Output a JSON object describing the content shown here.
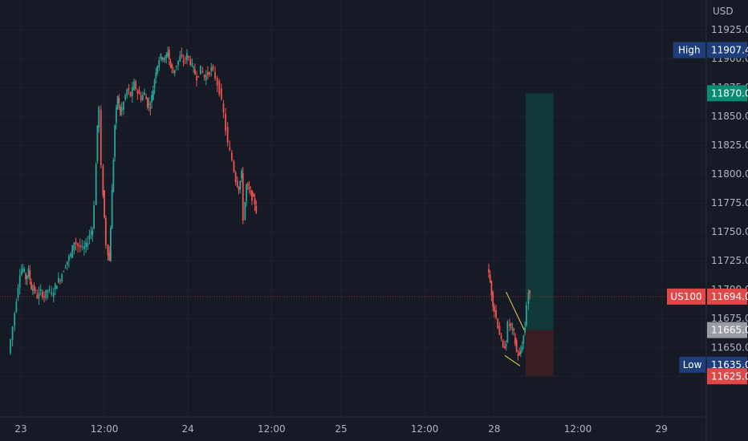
{
  "chart_data": {
    "type": "candlestick",
    "currency": "USD",
    "y_ticks": [
      "11925.0",
      "11900.0",
      "11875.0",
      "11850.0",
      "11825.0",
      "11800.0",
      "11775.0",
      "11750.0",
      "11725.0",
      "11700.0",
      "11675.0",
      "11650.0",
      "11625.0"
    ],
    "ylim": [
      11612,
      11932
    ],
    "x_ticks": [
      {
        "label": "23",
        "t": 0
      },
      {
        "label": "12:00",
        "t": 12
      },
      {
        "label": "24",
        "t": 24
      },
      {
        "label": "12:00",
        "t": 36
      },
      {
        "label": "25",
        "t": 46
      },
      {
        "label": "12:00",
        "t": 58
      },
      {
        "label": "28",
        "t": 68
      },
      {
        "label": "12:00",
        "t": 80
      },
      {
        "label": "29",
        "t": 92
      }
    ],
    "price_tags": [
      {
        "name": "High",
        "value": "11907.4",
        "price": 11907.4,
        "color": "#1d3e7a"
      },
      {
        "name": "",
        "value": "11870.0",
        "price": 11870.0,
        "color": "#0b8c72"
      },
      {
        "name": "US100",
        "value": "11694.0",
        "price": 11694.0,
        "color": "#e04848"
      },
      {
        "name": "",
        "value": "11665.0",
        "price": 11665.0,
        "color": "#9a9ca3"
      },
      {
        "name": "Low",
        "value": "11635.0",
        "price": 11635.0,
        "color": "#1d3e7a"
      },
      {
        "name": "",
        "value": "11625.0",
        "price": 11625.0,
        "color": "#e04848"
      }
    ],
    "current_price": 11694.0,
    "position": {
      "entry": 11665.0,
      "target": 11870.0,
      "stop": 11625.0,
      "t_start": 72.5,
      "t_end": 76.5
    },
    "wedge": {
      "upper": [
        [
          69.7,
          11698
        ],
        [
          72.3,
          11665
        ]
      ],
      "lower": [
        [
          69.5,
          11643
        ],
        [
          71.7,
          11634
        ]
      ]
    },
    "price_path": [
      [
        -1.5,
        11645
      ],
      [
        -0.9,
        11668
      ],
      [
        -0.4,
        11692
      ],
      [
        0.1,
        11715
      ],
      [
        0.5,
        11718
      ],
      [
        0.9,
        11710
      ],
      [
        1.3,
        11716
      ],
      [
        1.7,
        11702
      ],
      [
        2.1,
        11700
      ],
      [
        2.6,
        11694
      ],
      [
        3.1,
        11698
      ],
      [
        3.6,
        11694
      ],
      [
        4.1,
        11700
      ],
      [
        4.7,
        11696
      ],
      [
        5.4,
        11706
      ],
      [
        5.9,
        11710
      ],
      [
        6.4,
        11718
      ],
      [
        6.9,
        11725
      ],
      [
        7.4,
        11730
      ],
      [
        7.9,
        11742
      ],
      [
        8.5,
        11738
      ],
      [
        9.1,
        11735
      ],
      [
        9.6,
        11738
      ],
      [
        10.1,
        11748
      ],
      [
        10.5,
        11752
      ],
      [
        10.8,
        11775
      ],
      [
        11.2,
        11842
      ],
      [
        11.5,
        11857
      ],
      [
        11.8,
        11805
      ],
      [
        12.2,
        11762
      ],
      [
        12.5,
        11740
      ],
      [
        12.9,
        11725
      ],
      [
        13.3,
        11785
      ],
      [
        13.7,
        11842
      ],
      [
        14.1,
        11868
      ],
      [
        14.5,
        11852
      ],
      [
        15.0,
        11862
      ],
      [
        15.5,
        11873
      ],
      [
        16.0,
        11868
      ],
      [
        16.5,
        11878
      ],
      [
        17.0,
        11871
      ],
      [
        17.5,
        11866
      ],
      [
        18.0,
        11870
      ],
      [
        18.4,
        11860
      ],
      [
        18.8,
        11860
      ],
      [
        19.2,
        11874
      ],
      [
        19.6,
        11890
      ],
      [
        20.1,
        11900
      ],
      [
        20.5,
        11903
      ],
      [
        20.9,
        11898
      ],
      [
        21.3,
        11907
      ],
      [
        21.7,
        11893
      ],
      [
        22.1,
        11888
      ],
      [
        22.6,
        11895
      ],
      [
        23.1,
        11901
      ],
      [
        23.6,
        11898
      ],
      [
        24.1,
        11903
      ],
      [
        24.6,
        11897
      ],
      [
        25.0,
        11890
      ],
      [
        25.5,
        11884
      ],
      [
        26.1,
        11891
      ],
      [
        26.6,
        11884
      ],
      [
        27.1,
        11887
      ],
      [
        27.6,
        11891
      ],
      [
        28.2,
        11884
      ],
      [
        28.8,
        11872
      ],
      [
        29.4,
        11852
      ],
      [
        30.0,
        11826
      ],
      [
        30.6,
        11812
      ],
      [
        31.1,
        11795
      ],
      [
        31.5,
        11788
      ],
      [
        31.9,
        11800
      ],
      [
        32.2,
        11762
      ],
      [
        32.6,
        11790
      ],
      [
        33.0,
        11786
      ],
      [
        33.4,
        11780
      ],
      [
        33.8,
        11775
      ],
      [
        34.0,
        11768
      ]
    ],
    "price_path_2": [
      [
        67.2,
        11720
      ],
      [
        67.6,
        11706
      ],
      [
        68.0,
        11688
      ],
      [
        68.5,
        11676
      ],
      [
        69.0,
        11662
      ],
      [
        69.5,
        11648
      ],
      [
        69.9,
        11655
      ],
      [
        70.2,
        11670
      ],
      [
        70.6,
        11668
      ],
      [
        71.0,
        11662
      ],
      [
        71.4,
        11646
      ],
      [
        71.8,
        11642
      ],
      [
        72.2,
        11652
      ],
      [
        72.6,
        11668
      ],
      [
        72.9,
        11688
      ],
      [
        73.1,
        11698
      ],
      [
        73.3,
        11694
      ]
    ]
  }
}
